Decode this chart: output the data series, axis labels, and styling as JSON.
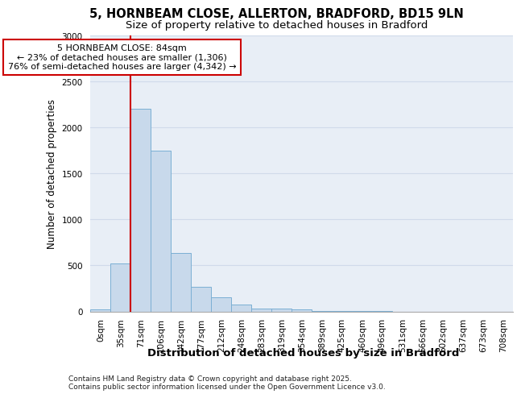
{
  "title_line1": "5, HORNBEAM CLOSE, ALLERTON, BRADFORD, BD15 9LN",
  "title_line2": "Size of property relative to detached houses in Bradford",
  "xlabel": "Distribution of detached houses by size in Bradford",
  "ylabel": "Number of detached properties",
  "categories": [
    "0sqm",
    "35sqm",
    "71sqm",
    "106sqm",
    "142sqm",
    "177sqm",
    "212sqm",
    "248sqm",
    "283sqm",
    "319sqm",
    "354sqm",
    "389sqm",
    "425sqm",
    "460sqm",
    "496sqm",
    "531sqm",
    "566sqm",
    "602sqm",
    "637sqm",
    "673sqm",
    "708sqm"
  ],
  "values": [
    20,
    525,
    2200,
    1750,
    635,
    265,
    150,
    75,
    35,
    30,
    25,
    5,
    5,
    3,
    3,
    0,
    0,
    0,
    0,
    0,
    0
  ],
  "bar_color": "#c8d9eb",
  "bar_edge_color": "#7bafd4",
  "vline_position": 1.5,
  "vline_color": "#cc0000",
  "annotation_text": "5 HORNBEAM CLOSE: 84sqm\n← 23% of detached houses are smaller (1,306)\n76% of semi-detached houses are larger (4,342) →",
  "annotation_box_facecolor": "#ffffff",
  "annotation_box_edgecolor": "#cc0000",
  "ylim": [
    0,
    3000
  ],
  "yticks": [
    0,
    500,
    1000,
    1500,
    2000,
    2500,
    3000
  ],
  "grid_color": "#d0daea",
  "background_color": "#e8eef6",
  "footer_line1": "Contains HM Land Registry data © Crown copyright and database right 2025.",
  "footer_line2": "Contains public sector information licensed under the Open Government Licence v3.0.",
  "title_fontsize": 10.5,
  "subtitle_fontsize": 9.5,
  "ylabel_fontsize": 8.5,
  "xlabel_fontsize": 9.5,
  "tick_fontsize": 7.5,
  "annotation_fontsize": 8,
  "footer_fontsize": 6.5
}
